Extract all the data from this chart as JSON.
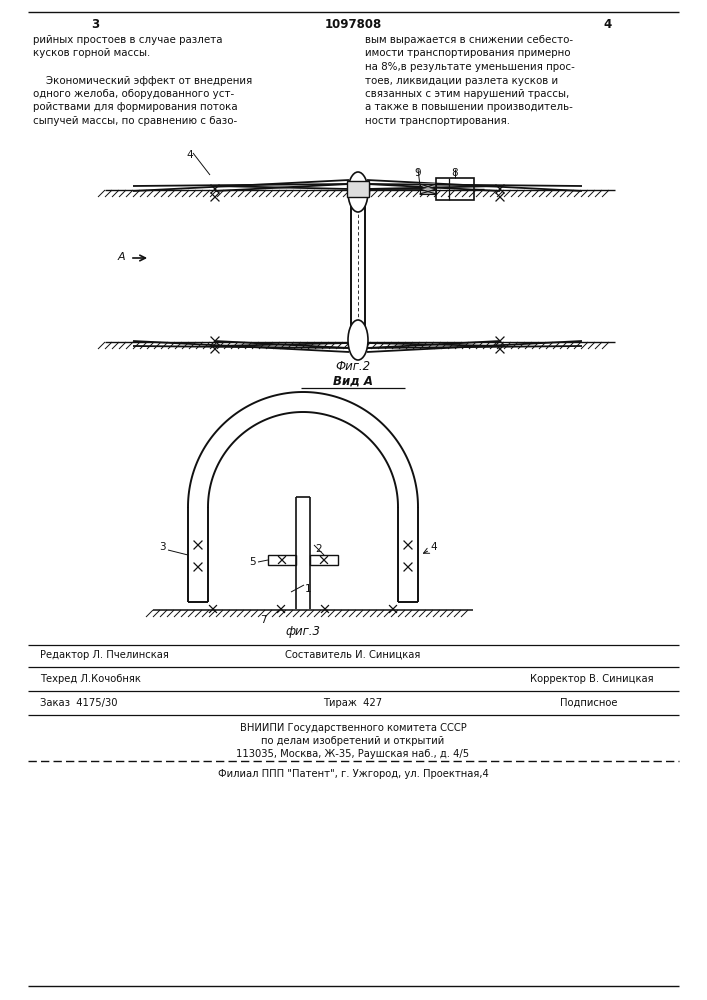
{
  "bg_color": "#ffffff",
  "header_page_num_left": "3",
  "header_patent_num": "1097808",
  "header_page_num_right": "4",
  "text_left_col_lines": [
    "рийных простоев в случае разлета",
    "кусков горной массы.",
    "",
    "    Экономический эффект от внедрения",
    "одного желоба, оборудованного уст-",
    "ройствами для формирования потока",
    "сыпучей массы, по сравнению с базо-"
  ],
  "text_right_col_lines": [
    "вым выражается в снижении себесто-",
    "имости транспортирования примерно",
    "на 8%,в результате уменьшения прос-",
    "тоев, ликвидации разлета кусков и",
    "связанных с этим нарушений трассы,",
    "а также в повышении производитель-",
    "ности транспортирования."
  ],
  "fig2_caption": "Фиг.2",
  "fig3_caption": "фиг.3",
  "vid_a_label": "Вид А",
  "editor_label": "Редактор Л. Пчелинская",
  "composer_label": "Составитель И. Синицкая",
  "techred_label": "Техред Л.Кочобняк",
  "corrector_label": "Корректор В. Синицкая",
  "order_label": "Заказ  4175/30",
  "tirazh_label": "Тираж  427",
  "podpisnoe_label": "Подписное",
  "vniipі_line1": "ВНИИПИ Государственного комитета СССР",
  "vniipі_line2": "по делам изобретений и открытий",
  "vniipі_line3": "113035, Москва, Ж-35, Раушская наб., д. 4/5",
  "filial_line": "Филиал ППП \"Патент\", г. Ужгород, ул. Проектная,4"
}
